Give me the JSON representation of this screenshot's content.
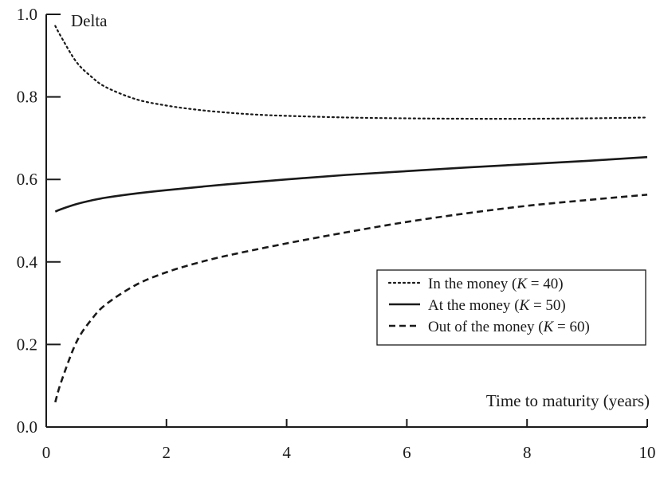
{
  "chart_data": {
    "type": "line",
    "ylabel": "Delta",
    "xlabel": "Time to maturity (years)",
    "xlim": [
      0,
      10
    ],
    "ylim": [
      0,
      1.0
    ],
    "x_ticks": [
      "0",
      "2",
      "4",
      "6",
      "8",
      "10"
    ],
    "y_ticks": [
      "0.0",
      "0.2",
      "0.4",
      "0.6",
      "0.8",
      "1.0"
    ],
    "grid": false,
    "legend_position": "middle-right",
    "series": [
      {
        "name": "In the money",
        "strike_label": "K",
        "strike_value": "40",
        "line_style": "dotted",
        "color": "#1a1a1a",
        "x": [
          0.15,
          0.25,
          0.5,
          0.75,
          1,
          1.5,
          2,
          2.5,
          3,
          3.5,
          4,
          5,
          6,
          7,
          8,
          9,
          10
        ],
        "y": [
          0.972,
          0.945,
          0.885,
          0.849,
          0.823,
          0.794,
          0.779,
          0.769,
          0.762,
          0.757,
          0.754,
          0.75,
          0.748,
          0.747,
          0.747,
          0.748,
          0.75
        ]
      },
      {
        "name": "At the money",
        "strike_label": "K",
        "strike_value": "50",
        "line_style": "solid",
        "color": "#1a1a1a",
        "x": [
          0.15,
          0.25,
          0.5,
          0.75,
          1,
          1.5,
          2,
          3,
          4,
          5,
          6,
          7,
          8,
          9,
          10
        ],
        "y": [
          0.522,
          0.528,
          0.54,
          0.549,
          0.556,
          0.566,
          0.574,
          0.588,
          0.6,
          0.611,
          0.62,
          0.629,
          0.637,
          0.645,
          0.654
        ]
      },
      {
        "name": "Out of the money",
        "strike_label": "K",
        "strike_value": "60",
        "line_style": "dashed",
        "color": "#1a1a1a",
        "x": [
          0.15,
          0.25,
          0.5,
          0.75,
          1,
          1.5,
          2,
          2.5,
          3,
          4,
          5,
          6,
          7,
          8,
          9,
          10
        ],
        "y": [
          0.06,
          0.11,
          0.205,
          0.26,
          0.298,
          0.345,
          0.375,
          0.397,
          0.415,
          0.445,
          0.472,
          0.497,
          0.518,
          0.536,
          0.55,
          0.563
        ]
      }
    ]
  }
}
